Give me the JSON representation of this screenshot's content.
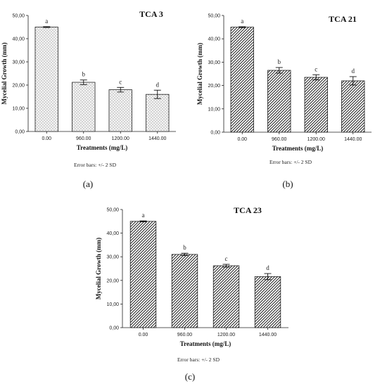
{
  "chart_data": [
    {
      "type": "bar",
      "title": "TCA 3",
      "panel_label": "(a)",
      "xlabel": "Treatments (mg/L)",
      "ylabel": "Mycelial Growth (mm)",
      "note": "Error bars: +/- 2 SD",
      "categories": [
        "0.00",
        "960.00",
        "1200.00",
        "1440.00"
      ],
      "values": [
        45.0,
        21.2,
        18.0,
        16.0
      ],
      "error": [
        0.2,
        1.0,
        1.0,
        1.8
      ],
      "labels": [
        "a",
        "b",
        "c",
        "d"
      ],
      "ylim": [
        0,
        50
      ],
      "yticks": [
        "0,00",
        "10,00",
        "20,00",
        "30,00",
        "40,00",
        "50,00"
      ],
      "pattern": "dots"
    },
    {
      "type": "bar",
      "title": "TCA 21",
      "panel_label": "(b)",
      "xlabel": "Treatments (mg/L)",
      "ylabel": "Mycelial Growth (mm)",
      "note": "Error bars: +/- 2 SD",
      "categories": [
        "0.00",
        "960.00",
        "1200.00",
        "1440.00"
      ],
      "values": [
        45.0,
        26.5,
        23.5,
        22.0
      ],
      "error": [
        0.2,
        1.2,
        1.1,
        1.8
      ],
      "labels": [
        "a",
        "b",
        "c",
        "d"
      ],
      "ylim": [
        0,
        50
      ],
      "yticks": [
        "0,00",
        "10,00",
        "20,00",
        "30,00",
        "40,00",
        "50,00"
      ],
      "pattern": "hatch"
    },
    {
      "type": "bar",
      "title": "TCA 23",
      "panel_label": "(c)",
      "xlabel": "Treatments (mg/L)",
      "ylabel": "Mycelial Growth (mm)",
      "note": "Error bars: +/- 2 SD",
      "categories": [
        "0.00",
        "960.00",
        "1200.00",
        "1440.00"
      ],
      "values": [
        45.0,
        31.0,
        26.2,
        21.6
      ],
      "error": [
        0.2,
        0.5,
        0.6,
        1.3
      ],
      "labels": [
        "a",
        "b",
        "c",
        "d"
      ],
      "ylim": [
        0,
        50
      ],
      "yticks": [
        "0,00",
        "10,00",
        "20,00",
        "30,00",
        "40,00",
        "50,00"
      ],
      "pattern": "hatch"
    }
  ]
}
